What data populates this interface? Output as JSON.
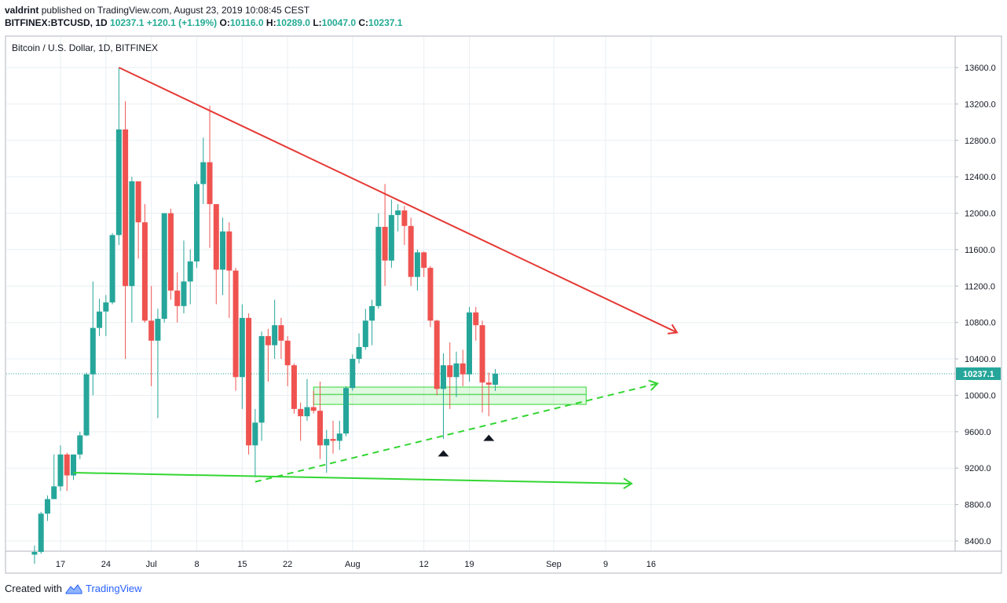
{
  "header": {
    "author": "valdrint",
    "published_text": "published on TradingView.com, August 23, 2019 10:08:45 CEST",
    "symbol": "BITFINEX:BTCUSD, 1D",
    "last": "10237.1",
    "change": "+120.1 (+1.19%)",
    "o_label": "O:",
    "o_value": "10116.0",
    "h_label": "H:",
    "h_value": "10289.0",
    "l_label": "L:",
    "l_value": "10047.0",
    "c_label": "C:",
    "c_value": "10237.1"
  },
  "footer": {
    "created_with": "Created with",
    "brand": "TradingView"
  },
  "colors": {
    "up": "#26a69a",
    "down": "#ef5350",
    "trend_red": "#e53935",
    "trend_green": "#33d633",
    "grid": "#e9eff3"
  },
  "chart_data": {
    "type": "candlestick",
    "title": "Bitcoin / U.S. Dollar, 1D, BITFINEX",
    "y_ticks": [
      8400,
      8800,
      9200,
      9600,
      10000,
      10400,
      10800,
      11200,
      11600,
      12000,
      12400,
      12800,
      13200,
      13600
    ],
    "y_tick_labels": [
      "8400.0",
      "8800.0",
      "9200.0",
      "9600.0",
      "10000.0",
      "10400.0",
      "10800.0",
      "11200.0",
      "11600.0",
      "12000.0",
      "12400.0",
      "12800.0",
      "13200.0",
      "13600.0"
    ],
    "x_tick_labels": [
      "17",
      "24",
      "Jul",
      "8",
      "15",
      "22",
      "Aug",
      "12",
      "19",
      "Sep",
      "9",
      "16"
    ],
    "x_tick_dates": [
      "2019-06-17",
      "2019-06-24",
      "2019-07-01",
      "2019-07-08",
      "2019-07-15",
      "2019-07-22",
      "2019-08-01",
      "2019-08-12",
      "2019-08-19",
      "2019-09-01",
      "2019-09-09",
      "2019-09-16"
    ],
    "last_price_label": "10237.1",
    "last_price": 10237.1,
    "candles": [
      {
        "date": "2019-06-13",
        "o": 8250,
        "h": 8350,
        "l": 8150,
        "c": 8280
      },
      {
        "date": "2019-06-14",
        "o": 8280,
        "h": 8720,
        "l": 8260,
        "c": 8700
      },
      {
        "date": "2019-06-15",
        "o": 8700,
        "h": 8900,
        "l": 8620,
        "c": 8860
      },
      {
        "date": "2019-06-16",
        "o": 8860,
        "h": 9350,
        "l": 8860,
        "c": 9000
      },
      {
        "date": "2019-06-17",
        "o": 9000,
        "h": 9450,
        "l": 8950,
        "c": 9350
      },
      {
        "date": "2019-06-18",
        "o": 9350,
        "h": 9370,
        "l": 8950,
        "c": 9120
      },
      {
        "date": "2019-06-19",
        "o": 9120,
        "h": 9330,
        "l": 9070,
        "c": 9350
      },
      {
        "date": "2019-06-20",
        "o": 9350,
        "h": 9600,
        "l": 9300,
        "c": 9560
      },
      {
        "date": "2019-06-21",
        "o": 9560,
        "h": 10250,
        "l": 9550,
        "c": 10230
      },
      {
        "date": "2019-06-22",
        "o": 10230,
        "h": 11250,
        "l": 10000,
        "c": 10740
      },
      {
        "date": "2019-06-23",
        "o": 10740,
        "h": 11060,
        "l": 10650,
        "c": 10920
      },
      {
        "date": "2019-06-24",
        "o": 10920,
        "h": 11100,
        "l": 10650,
        "c": 11020
      },
      {
        "date": "2019-06-25",
        "o": 11020,
        "h": 11780,
        "l": 11000,
        "c": 11760
      },
      {
        "date": "2019-06-26",
        "o": 11760,
        "h": 13600,
        "l": 11650,
        "c": 12920
      },
      {
        "date": "2019-06-27",
        "o": 12920,
        "h": 13230,
        "l": 10400,
        "c": 11200
      },
      {
        "date": "2019-06-28",
        "o": 11200,
        "h": 12400,
        "l": 10800,
        "c": 12350
      },
      {
        "date": "2019-06-29",
        "o": 12350,
        "h": 12350,
        "l": 11500,
        "c": 11900
      },
      {
        "date": "2019-06-30",
        "o": 11900,
        "h": 12100,
        "l": 10800,
        "c": 10820
      },
      {
        "date": "2019-07-01",
        "o": 10820,
        "h": 11200,
        "l": 10100,
        "c": 10600
      },
      {
        "date": "2019-07-02",
        "o": 10600,
        "h": 10950,
        "l": 9750,
        "c": 10840
      },
      {
        "date": "2019-07-03",
        "o": 10840,
        "h": 12000,
        "l": 10800,
        "c": 12000
      },
      {
        "date": "2019-07-04",
        "o": 12000,
        "h": 12050,
        "l": 11050,
        "c": 11150
      },
      {
        "date": "2019-07-05",
        "o": 11150,
        "h": 11350,
        "l": 10800,
        "c": 10980
      },
      {
        "date": "2019-07-06",
        "o": 10980,
        "h": 11700,
        "l": 10900,
        "c": 11250
      },
      {
        "date": "2019-07-07",
        "o": 11250,
        "h": 11600,
        "l": 11000,
        "c": 11470
      },
      {
        "date": "2019-07-08",
        "o": 11470,
        "h": 12350,
        "l": 11400,
        "c": 12320
      },
      {
        "date": "2019-07-09",
        "o": 12320,
        "h": 12830,
        "l": 12100,
        "c": 12560
      },
      {
        "date": "2019-07-10",
        "o": 12560,
        "h": 13180,
        "l": 11620,
        "c": 12100
      },
      {
        "date": "2019-07-11",
        "o": 12100,
        "h": 12100,
        "l": 11000,
        "c": 11380
      },
      {
        "date": "2019-07-12",
        "o": 11380,
        "h": 11950,
        "l": 11100,
        "c": 11800
      },
      {
        "date": "2019-07-13",
        "o": 11800,
        "h": 11900,
        "l": 10850,
        "c": 11370
      },
      {
        "date": "2019-07-14",
        "o": 11370,
        "h": 11400,
        "l": 10050,
        "c": 10200
      },
      {
        "date": "2019-07-15",
        "o": 10200,
        "h": 11000,
        "l": 9850,
        "c": 10850
      },
      {
        "date": "2019-07-16",
        "o": 10850,
        "h": 10900,
        "l": 9350,
        "c": 9450
      },
      {
        "date": "2019-07-17",
        "o": 9450,
        "h": 9850,
        "l": 9100,
        "c": 9700
      },
      {
        "date": "2019-07-18",
        "o": 9700,
        "h": 10700,
        "l": 9500,
        "c": 10650
      },
      {
        "date": "2019-07-19",
        "o": 10650,
        "h": 10730,
        "l": 10150,
        "c": 10550
      },
      {
        "date": "2019-07-20",
        "o": 10550,
        "h": 11050,
        "l": 10400,
        "c": 10770
      },
      {
        "date": "2019-07-21",
        "o": 10770,
        "h": 10850,
        "l": 10400,
        "c": 10600
      },
      {
        "date": "2019-07-22",
        "o": 10600,
        "h": 10650,
        "l": 10100,
        "c": 10330
      },
      {
        "date": "2019-07-23",
        "o": 10330,
        "h": 10350,
        "l": 9800,
        "c": 9850
      },
      {
        "date": "2019-07-24",
        "o": 9850,
        "h": 9920,
        "l": 9500,
        "c": 9770
      },
      {
        "date": "2019-07-25",
        "o": 9770,
        "h": 10180,
        "l": 9720,
        "c": 9870
      },
      {
        "date": "2019-07-26",
        "o": 9870,
        "h": 10050,
        "l": 9800,
        "c": 9830
      },
      {
        "date": "2019-07-27",
        "o": 9830,
        "h": 10150,
        "l": 9300,
        "c": 9450
      },
      {
        "date": "2019-07-28",
        "o": 9450,
        "h": 9620,
        "l": 9150,
        "c": 9520
      },
      {
        "date": "2019-07-29",
        "o": 9520,
        "h": 9720,
        "l": 9360,
        "c": 9500
      },
      {
        "date": "2019-07-30",
        "o": 9500,
        "h": 9720,
        "l": 9400,
        "c": 9580
      },
      {
        "date": "2019-07-31",
        "o": 9580,
        "h": 10100,
        "l": 9550,
        "c": 10080
      },
      {
        "date": "2019-08-01",
        "o": 10080,
        "h": 10450,
        "l": 10050,
        "c": 10400
      },
      {
        "date": "2019-08-02",
        "o": 10400,
        "h": 10680,
        "l": 10350,
        "c": 10530
      },
      {
        "date": "2019-08-03",
        "o": 10530,
        "h": 10950,
        "l": 10500,
        "c": 10820
      },
      {
        "date": "2019-08-04",
        "o": 10820,
        "h": 11050,
        "l": 10550,
        "c": 10980
      },
      {
        "date": "2019-08-05",
        "o": 10980,
        "h": 12000,
        "l": 10950,
        "c": 11850
      },
      {
        "date": "2019-08-06",
        "o": 11850,
        "h": 12320,
        "l": 11200,
        "c": 11480
      },
      {
        "date": "2019-08-07",
        "o": 11480,
        "h": 12150,
        "l": 11400,
        "c": 11980
      },
      {
        "date": "2019-08-08",
        "o": 11980,
        "h": 12100,
        "l": 11800,
        "c": 12030
      },
      {
        "date": "2019-08-09",
        "o": 12030,
        "h": 12080,
        "l": 11650,
        "c": 11860
      },
      {
        "date": "2019-08-10",
        "o": 11860,
        "h": 11950,
        "l": 11200,
        "c": 11300
      },
      {
        "date": "2019-08-11",
        "o": 11300,
        "h": 11600,
        "l": 11150,
        "c": 11570
      },
      {
        "date": "2019-08-12",
        "o": 11570,
        "h": 11580,
        "l": 11300,
        "c": 11400
      },
      {
        "date": "2019-08-13",
        "o": 11400,
        "h": 11420,
        "l": 10750,
        "c": 10820
      },
      {
        "date": "2019-08-14",
        "o": 10820,
        "h": 10830,
        "l": 10000,
        "c": 10070
      },
      {
        "date": "2019-08-15",
        "o": 10070,
        "h": 10460,
        "l": 9520,
        "c": 10330
      },
      {
        "date": "2019-08-16",
        "o": 10330,
        "h": 10580,
        "l": 9850,
        "c": 10200
      },
      {
        "date": "2019-08-17",
        "o": 10200,
        "h": 10480,
        "l": 9980,
        "c": 10350
      },
      {
        "date": "2019-08-18",
        "o": 10350,
        "h": 10500,
        "l": 10100,
        "c": 10230
      },
      {
        "date": "2019-08-19",
        "o": 10230,
        "h": 10970,
        "l": 10150,
        "c": 10910
      },
      {
        "date": "2019-08-20",
        "o": 10910,
        "h": 10970,
        "l": 10600,
        "c": 10770
      },
      {
        "date": "2019-08-21",
        "o": 10770,
        "h": 10820,
        "l": 9810,
        "c": 10140
      },
      {
        "date": "2019-08-22",
        "o": 10140,
        "h": 10250,
        "l": 9770,
        "c": 10117
      },
      {
        "date": "2019-08-23",
        "o": 10116,
        "h": 10289,
        "l": 10047,
        "c": 10237.1
      }
    ]
  }
}
